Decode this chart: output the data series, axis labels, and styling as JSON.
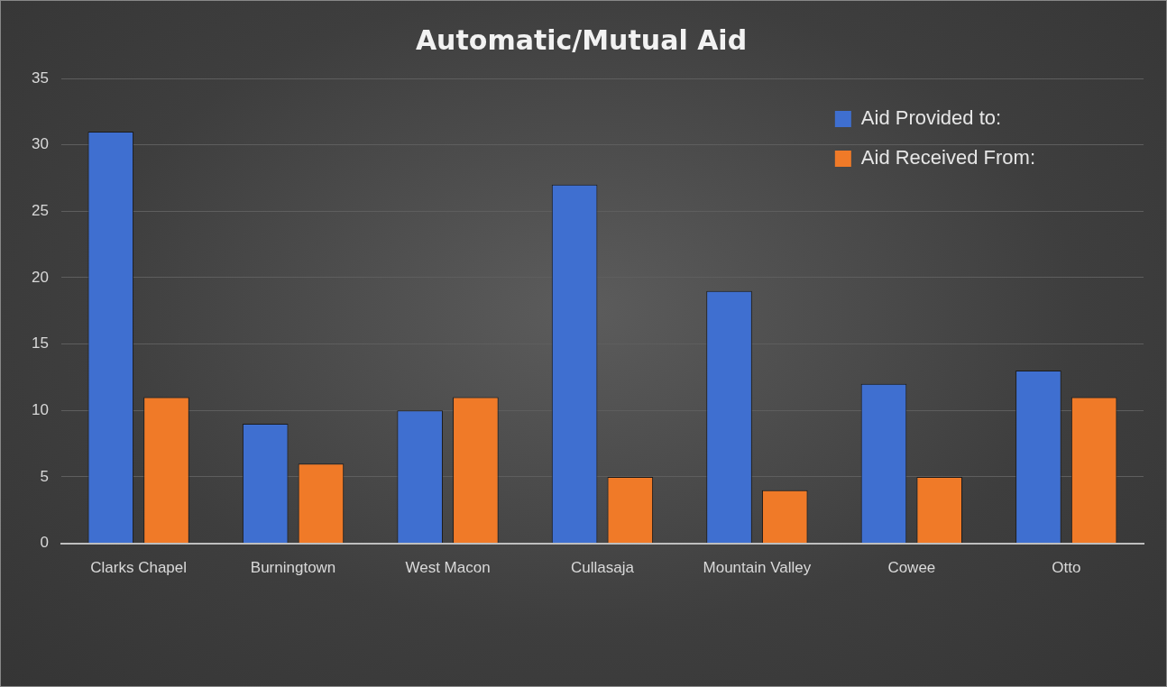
{
  "chart_data": {
    "type": "bar",
    "title": "Automatic/Mutual Aid",
    "categories": [
      "Clarks Chapel",
      "Burningtown",
      "West Macon",
      "Cullasaja",
      "Mountain Valley",
      "Cowee",
      "Otto"
    ],
    "series": [
      {
        "name": "Aid Provided to:",
        "color": "#3f6fd0",
        "values": [
          31,
          9,
          10,
          27,
          19,
          12,
          13
        ]
      },
      {
        "name": "Aid Received From:",
        "color": "#f07a28",
        "values": [
          11,
          6,
          11,
          5,
          4,
          5,
          11
        ]
      }
    ],
    "ylim": [
      0,
      35
    ],
    "yticks": [
      0,
      5,
      10,
      15,
      20,
      25,
      30,
      35
    ],
    "grid": "y",
    "legend": "top right"
  }
}
